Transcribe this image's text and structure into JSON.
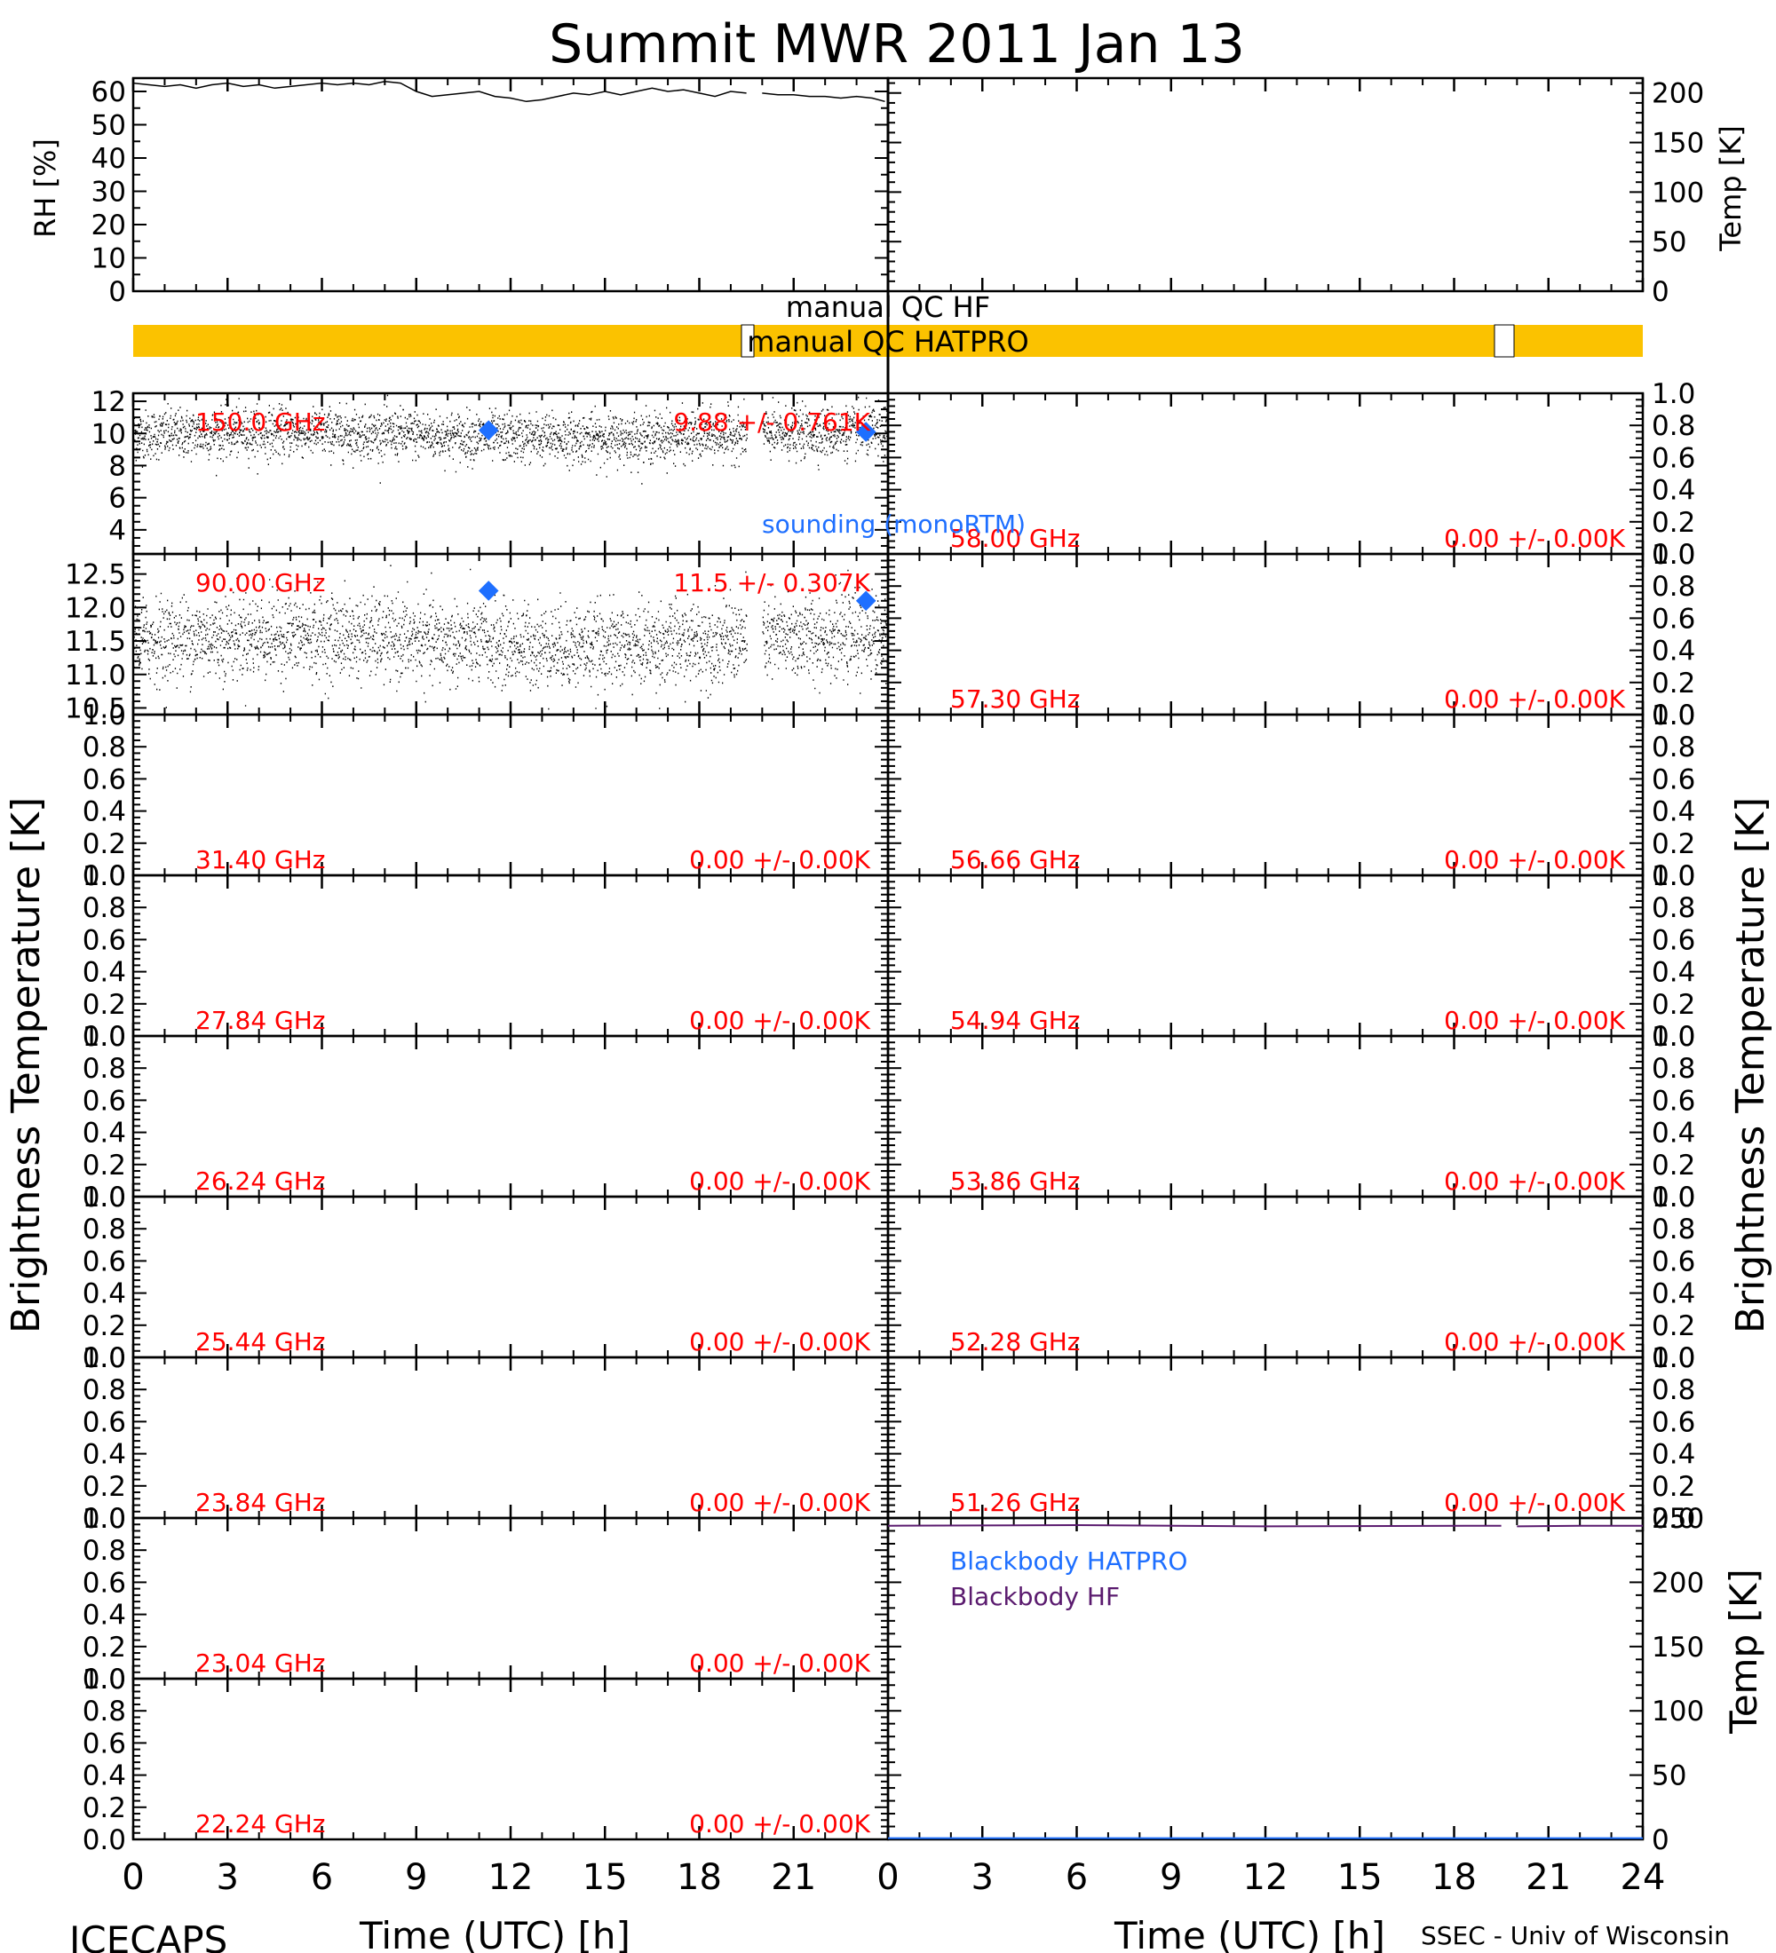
{
  "title": "Summit MWR 2011 Jan 13",
  "footer": {
    "left": "ICECAPS",
    "right": "SSEC - Univ of Wisconsin",
    "xlabel": "Time (UTC) [h]"
  },
  "axis_labels": {
    "rh": "RH [%]",
    "temp_top": "Temp [K]",
    "tb_left": "Brightness Temperature [K]",
    "tb_right": "Brightness Temperature [K]",
    "temp_bottom": "Temp [K]"
  },
  "qc": {
    "hf_label": "manual QC HF",
    "hatpro_label": "manual QC HATPRO",
    "bar_color": "#FBC200"
  },
  "colors": {
    "annotation_red": "#FF0000",
    "sounding_blue": "#1E6FFF",
    "blackbody_purple": "#5A1A6E"
  },
  "sounding_label": "sounding (monoRTM)",
  "chart_data": [
    {
      "id": "rh",
      "type": "line",
      "ylabel": "RH [%]",
      "xlim": [
        0,
        24
      ],
      "ylim": [
        0,
        64
      ],
      "yticks": [
        "0",
        "10",
        "20",
        "30",
        "40",
        "50",
        "60"
      ],
      "series": [
        {
          "x": [
            0,
            0.5,
            1,
            1.5,
            2,
            2.5,
            3,
            3.5,
            4,
            4.5,
            5,
            5.5,
            6,
            6.5,
            7,
            7.5,
            8,
            8.5,
            9,
            9.5,
            10,
            10.5,
            11,
            11.5,
            12,
            12.5,
            13,
            13.5,
            14,
            14.5,
            15,
            15.5,
            16,
            16.5,
            17,
            17.5,
            18,
            18.5,
            19,
            19.5
          ],
          "y": [
            62.5,
            62,
            61.5,
            62,
            61,
            62,
            62.5,
            61.5,
            62,
            61,
            61.5,
            62,
            62.5,
            62,
            62.5,
            62,
            63,
            62.5,
            60,
            58.5,
            59,
            59.5,
            60,
            58.5,
            58,
            57,
            57.5,
            58.5,
            59.5,
            59,
            60,
            59,
            60,
            61,
            60,
            60.5,
            59.5,
            58.5,
            60,
            59.5
          ]
        },
        {
          "x": [
            20,
            20.5,
            21,
            21.5,
            22,
            22.5,
            23,
            23.5,
            23.9
          ],
          "y": [
            59.5,
            59,
            59,
            58.5,
            58.5,
            58,
            58.5,
            58,
            57
          ]
        }
      ]
    },
    {
      "id": "temp_top",
      "type": "line",
      "ylabel": "Temp [K]",
      "xlim": [
        0,
        24
      ],
      "ylim": [
        0,
        215
      ],
      "yticks": [
        "0",
        "50",
        "100",
        "150",
        "200"
      ],
      "series": []
    },
    {
      "id": "tb_150",
      "type": "scatter",
      "freq_label": "150.0 GHz",
      "stat_label": "9.88 +/- 0.761K",
      "ylim": [
        2.5,
        12.5
      ],
      "yticks": [
        "4",
        "6",
        "8",
        "10",
        "12"
      ],
      "noise": {
        "mean": 9.88,
        "std": 0.761,
        "gap": [
          19.5,
          20.0
        ]
      },
      "sounding": [
        {
          "x": 11.3,
          "y": 10.2
        },
        {
          "x": 23.3,
          "y": 10.1
        }
      ]
    },
    {
      "id": "tb_90",
      "type": "scatter",
      "freq_label": "90.00 GHz",
      "stat_label": "11.5 +/- 0.307K",
      "ylim": [
        10.4,
        12.8
      ],
      "yticks": [
        "10.5",
        "11.0",
        "11.5",
        "12.0",
        "12.5"
      ],
      "noise": {
        "mean": 11.5,
        "std": 0.307,
        "gap": [
          19.5,
          20.0
        ]
      },
      "sounding": [
        {
          "x": 11.3,
          "y": 12.25
        },
        {
          "x": 23.3,
          "y": 12.1
        }
      ]
    },
    {
      "id": "tb_31",
      "type": "scatter",
      "freq_label": "31.40 GHz",
      "stat_label": "0.00 +/- 0.00K",
      "ylim": [
        0,
        1
      ],
      "yticks": [
        "0.0",
        "0.2",
        "0.4",
        "0.6",
        "0.8",
        "1.0"
      ]
    },
    {
      "id": "tb_27",
      "type": "scatter",
      "freq_label": "27.84 GHz",
      "stat_label": "0.00 +/- 0.00K",
      "ylim": [
        0,
        1
      ],
      "yticks": [
        "0.0",
        "0.2",
        "0.4",
        "0.6",
        "0.8",
        "1.0"
      ]
    },
    {
      "id": "tb_26",
      "type": "scatter",
      "freq_label": "26.24 GHz",
      "stat_label": "0.00 +/- 0.00K",
      "ylim": [
        0,
        1
      ],
      "yticks": [
        "0.0",
        "0.2",
        "0.4",
        "0.6",
        "0.8",
        "1.0"
      ]
    },
    {
      "id": "tb_25",
      "type": "scatter",
      "freq_label": "25.44 GHz",
      "stat_label": "0.00 +/- 0.00K",
      "ylim": [
        0,
        1
      ],
      "yticks": [
        "0.0",
        "0.2",
        "0.4",
        "0.6",
        "0.8",
        "1.0"
      ]
    },
    {
      "id": "tb_23_84",
      "type": "scatter",
      "freq_label": "23.84 GHz",
      "stat_label": "0.00 +/- 0.00K",
      "ylim": [
        0,
        1
      ],
      "yticks": [
        "0.0",
        "0.2",
        "0.4",
        "0.6",
        "0.8",
        "1.0"
      ]
    },
    {
      "id": "tb_23_04",
      "type": "scatter",
      "freq_label": "23.04 GHz",
      "stat_label": "0.00 +/- 0.00K",
      "ylim": [
        0,
        1
      ],
      "yticks": [
        "0.0",
        "0.2",
        "0.4",
        "0.6",
        "0.8",
        "1.0"
      ]
    },
    {
      "id": "tb_22",
      "type": "scatter",
      "freq_label": "22.24 GHz",
      "stat_label": "0.00 +/- 0.00K",
      "ylim": [
        0,
        1
      ],
      "yticks": [
        "0.0",
        "0.2",
        "0.4",
        "0.6",
        "0.8",
        "1.0"
      ]
    },
    {
      "id": "tb_58",
      "type": "scatter",
      "freq_label": "58.00 GHz",
      "stat_label": "0.00 +/- 0.00K",
      "ylim": [
        0,
        1
      ],
      "yticks": [
        "0.0",
        "0.2",
        "0.4",
        "0.6",
        "0.8",
        "1.0"
      ]
    },
    {
      "id": "tb_57",
      "type": "scatter",
      "freq_label": "57.30 GHz",
      "stat_label": "0.00 +/- 0.00K",
      "ylim": [
        0,
        1
      ],
      "yticks": [
        "0.0",
        "0.2",
        "0.4",
        "0.6",
        "0.8",
        "1.0"
      ]
    },
    {
      "id": "tb_56",
      "type": "scatter",
      "freq_label": "56.66 GHz",
      "stat_label": "0.00 +/- 0.00K",
      "ylim": [
        0,
        1
      ],
      "yticks": [
        "0.0",
        "0.2",
        "0.4",
        "0.6",
        "0.8",
        "1.0"
      ]
    },
    {
      "id": "tb_54",
      "type": "scatter",
      "freq_label": "54.94 GHz",
      "stat_label": "0.00 +/- 0.00K",
      "ylim": [
        0,
        1
      ],
      "yticks": [
        "0.0",
        "0.2",
        "0.4",
        "0.6",
        "0.8",
        "1.0"
      ]
    },
    {
      "id": "tb_53",
      "type": "scatter",
      "freq_label": "53.86 GHz",
      "stat_label": "0.00 +/- 0.00K",
      "ylim": [
        0,
        1
      ],
      "yticks": [
        "0.0",
        "0.2",
        "0.4",
        "0.6",
        "0.8",
        "1.0"
      ]
    },
    {
      "id": "tb_52",
      "type": "scatter",
      "freq_label": "52.28 GHz",
      "stat_label": "0.00 +/- 0.00K",
      "ylim": [
        0,
        1
      ],
      "yticks": [
        "0.0",
        "0.2",
        "0.4",
        "0.6",
        "0.8",
        "1.0"
      ]
    },
    {
      "id": "tb_51",
      "type": "scatter",
      "freq_label": "51.26 GHz",
      "stat_label": "0.00 +/- 0.00K",
      "ylim": [
        0,
        1
      ],
      "yticks": [
        "0.0",
        "0.2",
        "0.4",
        "0.6",
        "0.8",
        "1.0"
      ]
    },
    {
      "id": "blackbody",
      "type": "line",
      "ylabel": "Temp [K]",
      "ylim": [
        0,
        250
      ],
      "yticks": [
        "0",
        "50",
        "100",
        "150",
        "200",
        "250"
      ],
      "legend": [
        {
          "name": "Blackbody HATPRO",
          "color": "#1E6FFF"
        },
        {
          "name": "Blackbody HF",
          "color": "#5A1A6E"
        }
      ],
      "series": [
        {
          "name": "Blackbody HF",
          "x": [
            0,
            6,
            12,
            19.5
          ],
          "y": [
            244,
            244.5,
            243.5,
            244
          ]
        },
        {
          "name": "Blackbody HF",
          "x": [
            20,
            22,
            24
          ],
          "y": [
            243.5,
            244,
            244
          ]
        },
        {
          "name": "Blackbody HATPRO",
          "x": [
            0,
            24
          ],
          "y": [
            1,
            1
          ]
        }
      ]
    }
  ],
  "x_axis": {
    "left_ticks": [
      "0",
      "3",
      "6",
      "9",
      "12",
      "15",
      "18",
      "21"
    ],
    "right_ticks": [
      "0",
      "3",
      "6",
      "9",
      "12",
      "15",
      "18",
      "21",
      "24"
    ]
  }
}
